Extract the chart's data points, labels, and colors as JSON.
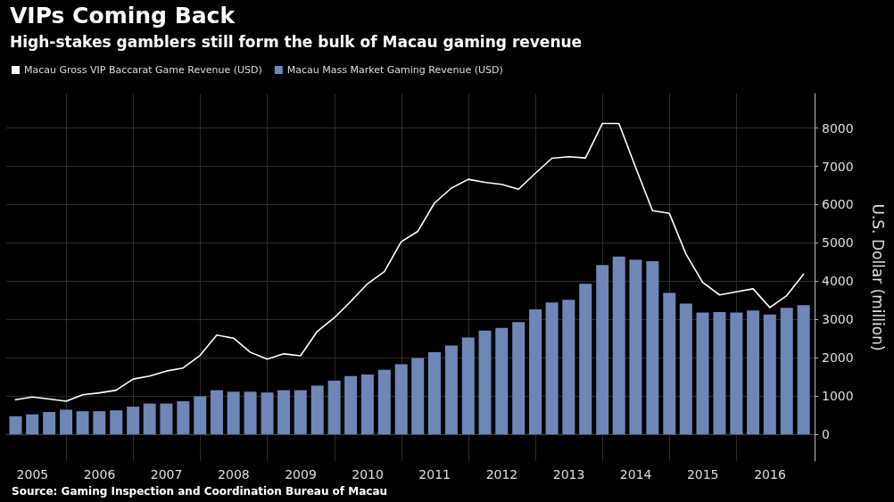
{
  "chart_data": {
    "type": "bar",
    "title": "VIPs Coming Back",
    "subtitle": "High-stakes gamblers still form the bulk of Macau gaming revenue",
    "ylabel": "U.S. Dollar (million)",
    "annotations": [
      "Source: Gaming Inspection and Coordination Bureau of Macau"
    ],
    "x": [
      "2005-03-31",
      "2005-06-30",
      "2005-09-30",
      "2005-12-31",
      "2006-03-31",
      "2006-06-30",
      "2006-09-30",
      "2006-12-31",
      "2007-03-31",
      "2007-06-30",
      "2007-09-30",
      "2007-12-31",
      "2008-03-31",
      "2008-06-30",
      "2008-09-30",
      "2008-12-31",
      "2009-03-31",
      "2009-06-30",
      "2009-09-30",
      "2009-12-31",
      "2010-03-31",
      "2010-06-30",
      "2010-09-30",
      "2010-12-31",
      "2011-03-31",
      "2011-06-30",
      "2011-09-30",
      "2011-12-31",
      "2012-03-31",
      "2012-06-30",
      "2012-09-30",
      "2012-12-31",
      "2013-03-31",
      "2013-06-30",
      "2013-09-30",
      "2013-12-31",
      "2014-03-31",
      "2014-06-30",
      "2014-09-30",
      "2014-12-31",
      "2015-03-31",
      "2015-06-30",
      "2015-09-30",
      "2015-12-31",
      "2016-03-31",
      "2016-06-30",
      "2016-09-30",
      "2016-12-31"
    ],
    "series": [
      {
        "name": "Macau Gross VIP Baccarat Game Revenue (USD)",
        "type": "line",
        "color": "#ffffff",
        "values": [
          900,
          970,
          920,
          860,
          1030,
          1080,
          1150,
          1440,
          1520,
          1650,
          1730,
          2060,
          2590,
          2510,
          2140,
          1960,
          2100,
          2050,
          2690,
          3040,
          3470,
          3930,
          4250,
          5030,
          5300,
          6040,
          6430,
          6660,
          6580,
          6530,
          6400,
          6820,
          7210,
          7250,
          7220,
          8120,
          8120,
          6970,
          5840,
          5770,
          4710,
          3970,
          3640,
          3720,
          3800,
          3310,
          3620,
          4180
        ]
      },
      {
        "name": "Macau Mass Market Gaming Revenue (USD)",
        "color": "#6f86b8",
        "values": [
          470,
          520,
          580,
          640,
          600,
          600,
          620,
          720,
          800,
          800,
          860,
          990,
          1150,
          1110,
          1110,
          1090,
          1150,
          1150,
          1270,
          1400,
          1520,
          1560,
          1680,
          1830,
          1990,
          2140,
          2320,
          2530,
          2710,
          2780,
          2930,
          3260,
          3440,
          3510,
          3930,
          4420,
          4640,
          4560,
          4520,
          3690,
          3410,
          3180,
          3190,
          3180,
          3230,
          3130,
          3300,
          3370
        ]
      }
    ],
    "xlim": [
      "2005-02-08",
      "2017-03-01"
    ],
    "xticks": [
      {
        "value": "2005-07-01",
        "label": "2005"
      },
      {
        "value": "2006-01-01",
        "label": null
      },
      {
        "value": "2006-07-01",
        "label": "2006"
      },
      {
        "value": "2007-01-01",
        "label": null
      },
      {
        "value": "2007-07-01",
        "label": "2007"
      },
      {
        "value": "2008-01-01",
        "label": null
      },
      {
        "value": "2008-07-01",
        "label": "2008"
      },
      {
        "value": "2009-01-01",
        "label": null
      },
      {
        "value": "2009-07-01",
        "label": "2009"
      },
      {
        "value": "2010-01-01",
        "label": null
      },
      {
        "value": "2010-07-01",
        "label": "2010"
      },
      {
        "value": "2011-01-01",
        "label": null
      },
      {
        "value": "2011-07-01",
        "label": "2011"
      },
      {
        "value": "2012-01-01",
        "label": null
      },
      {
        "value": "2012-07-01",
        "label": "2012"
      },
      {
        "value": "2013-01-01",
        "label": null
      },
      {
        "value": "2013-07-01",
        "label": "2013"
      },
      {
        "value": "2014-01-01",
        "label": null
      },
      {
        "value": "2014-07-01",
        "label": "2014"
      },
      {
        "value": "2015-01-01",
        "label": null
      },
      {
        "value": "2015-07-01",
        "label": "2015"
      },
      {
        "value": "2016-01-01",
        "label": null
      },
      {
        "value": "2016-07-01",
        "label": "2016"
      }
    ],
    "ylim": [
      -700,
      8900
    ],
    "yticks": [
      0,
      1000,
      2000,
      3000,
      4000,
      5000,
      6000,
      7000,
      8000
    ],
    "grid": true,
    "legend": "top left",
    "marker": "none"
  }
}
